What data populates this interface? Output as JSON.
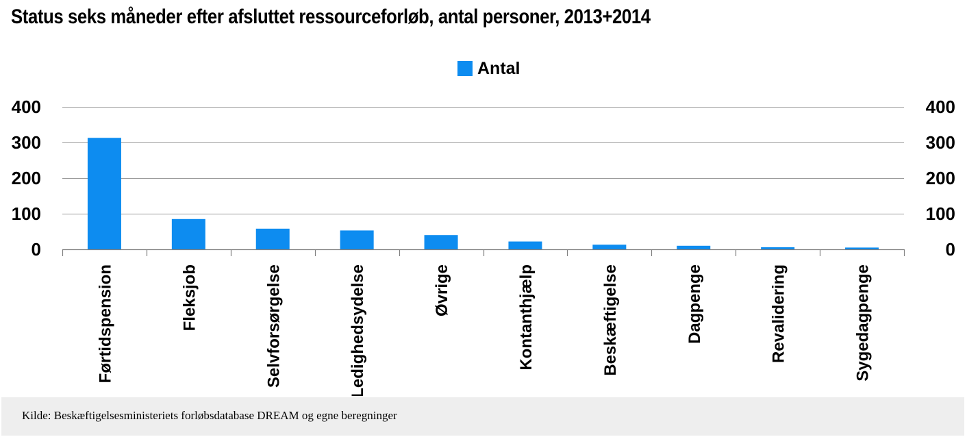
{
  "chart_data": {
    "type": "bar",
    "title": "Status seks måneder efter afsluttet ressourceforløb, antal personer, 2013+2014",
    "categories": [
      "Førtidspension",
      "Fleksjob",
      "Selvforsørgelse",
      "Ledighedsydelse",
      "Øvrige",
      "Kontanthjælp",
      "Beskæftigelse",
      "Dagpenge",
      "Revalidering",
      "Sygedagpenge"
    ],
    "series": [
      {
        "name": "Antal",
        "color": "#0d8cf0",
        "values": [
          313,
          85,
          58,
          53,
          40,
          22,
          13,
          10,
          6,
          5
        ]
      }
    ],
    "ylim": [
      0,
      400
    ],
    "yticks": [
      "0",
      "100",
      "200",
      "300",
      "400"
    ],
    "secondary_yticks": [
      "0",
      "100",
      "200",
      "300",
      "400"
    ],
    "xlabel": "",
    "ylabel": "",
    "grid": true,
    "legend": "top-center"
  },
  "source": "Kilde: Beskæftigelsesministeriets forløbsdatabase DREAM og egne beregninger"
}
